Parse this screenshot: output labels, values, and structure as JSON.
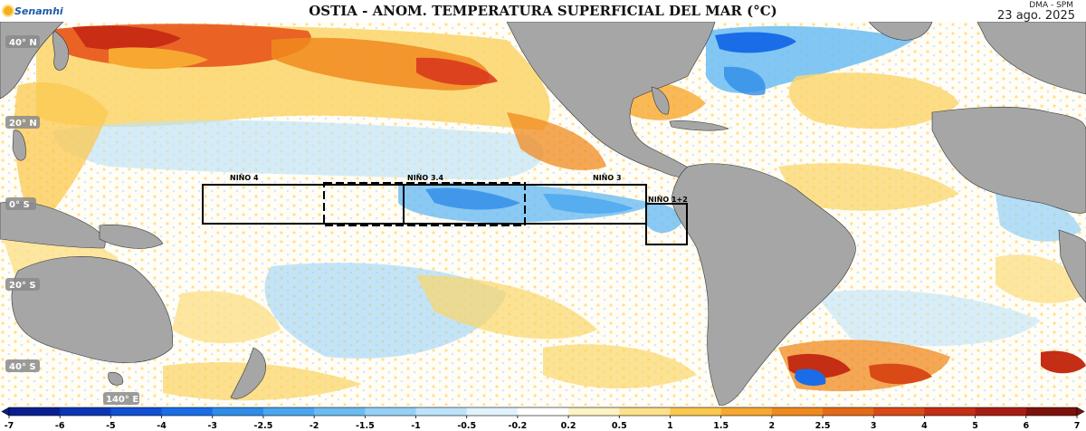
{
  "header": {
    "logo_text": "Senamhi",
    "title": "OSTIA - ANOM. TEMPERATURA SUPERFICIAL DEL MAR (°C)",
    "source": "DMA - SPM",
    "date": "23 ago. 2025"
  },
  "map": {
    "lat_labels": [
      "40° N",
      "20° N",
      "0° S",
      "20° S",
      "40° S"
    ],
    "lon_label": "140° E",
    "nino_regions": [
      "NIÑO 4",
      "NIÑO 3.4",
      "NIÑO 3",
      "NIÑO 1+2"
    ],
    "colors": {
      "ocean_neutral": "#fffdf5",
      "land": "#a6a6a6",
      "warm": "#fbd56a",
      "hot": "#f28a1e",
      "very_hot": "#d9341d",
      "cool": "#bfe3f7",
      "cold": "#3a8fe0"
    }
  },
  "colorbar": {
    "ticks": [
      "-7",
      "-6",
      "-5",
      "-4",
      "-3",
      "-2.5",
      "-2",
      "-1.5",
      "-1",
      "-0.5",
      "-0.2",
      "0.2",
      "0.5",
      "1",
      "1.5",
      "2",
      "2.5",
      "3",
      "4",
      "5",
      "6",
      "7"
    ],
    "colors": [
      "#0a1f8f",
      "#0d36b5",
      "#1250d4",
      "#1a6de6",
      "#2f8ce8",
      "#4aa6ee",
      "#6cbcf2",
      "#94d0f6",
      "#bde3fa",
      "#e1f2fc",
      "#ffffff",
      "#fff3c4",
      "#fde08a",
      "#fbc84e",
      "#f7a830",
      "#f08a1e",
      "#e56a18",
      "#d94a17",
      "#c32e14",
      "#a81d12",
      "#7d120c"
    ]
  }
}
